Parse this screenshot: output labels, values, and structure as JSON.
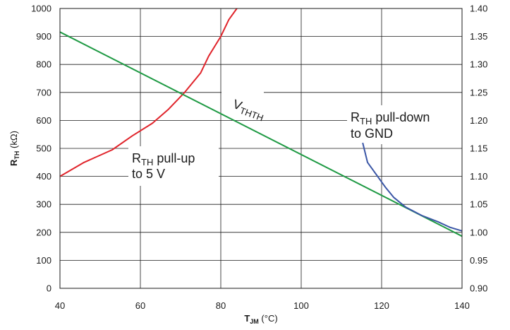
{
  "chart_data": {
    "type": "line",
    "x_axis": {
      "label_main": "T",
      "label_sub": "JM",
      "label_unit": "(°C)",
      "min": 40,
      "max": 140,
      "ticks": [
        "40",
        "60",
        "80",
        "100",
        "120",
        "140"
      ]
    },
    "y_axis_left": {
      "label_main": "R",
      "label_sub": "TH",
      "label_unit": "(kΩ)",
      "min": 0,
      "max": 1000,
      "ticks": [
        "0",
        "100",
        "200",
        "300",
        "400",
        "500",
        "600",
        "700",
        "800",
        "900",
        "1000"
      ]
    },
    "y_axis_right": {
      "min": 0.9,
      "max": 1.4,
      "ticks": [
        "0.90",
        "0.95",
        "1.00",
        "1.05",
        "1.10",
        "1.15",
        "1.20",
        "1.25",
        "1.30",
        "1.35",
        "1.40"
      ]
    },
    "grid": true,
    "series": [
      {
        "id": "pullup",
        "color": "#e0242b",
        "axis": "left",
        "points": [
          [
            40,
            400
          ],
          [
            46,
            450
          ],
          [
            53,
            495
          ],
          [
            58,
            545
          ],
          [
            63,
            590
          ],
          [
            67,
            640
          ],
          [
            71,
            700
          ],
          [
            75,
            770
          ],
          [
            77,
            830
          ],
          [
            80,
            900
          ],
          [
            82,
            960
          ],
          [
            84,
            1000
          ]
        ]
      },
      {
        "id": "vth",
        "color": "#1f9a44",
        "axis": "right",
        "points": [
          [
            40,
            1.358
          ],
          [
            140,
            0.993
          ]
        ]
      },
      {
        "id": "pulldown",
        "color": "#3a56a6",
        "axis": "left",
        "points": [
          [
            115.3,
            520
          ],
          [
            116.5,
            450
          ],
          [
            119,
            400
          ],
          [
            121,
            360
          ],
          [
            123,
            325
          ],
          [
            126,
            290
          ],
          [
            130,
            260
          ],
          [
            134,
            238
          ],
          [
            137,
            218
          ],
          [
            140,
            205
          ]
        ]
      }
    ],
    "annotations": [
      {
        "id": "pullup-label",
        "main": "R",
        "sub": "TH",
        "rest": " pull-up",
        "line2": "to 5 V"
      },
      {
        "id": "pulldown-label",
        "main": "R",
        "sub": "TH",
        "rest": " pull-down",
        "line2": "to GND"
      },
      {
        "id": "vth-label",
        "main": "V",
        "sub": "THTH"
      }
    ]
  }
}
